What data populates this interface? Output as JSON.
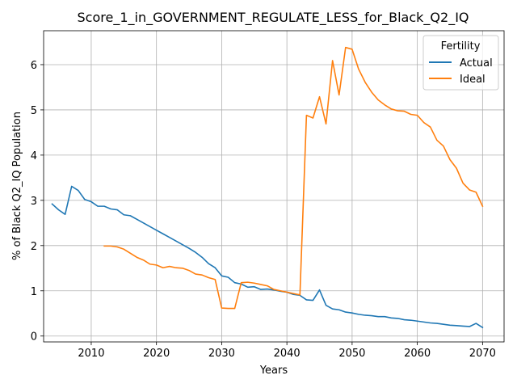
{
  "chart_data": {
    "type": "line",
    "title": "Score_1_in_GOVERNMENT_REGULATE_LESS_for_Black_Q2_IQ",
    "xlabel": "Years",
    "ylabel": "% of Black Q2_IQ Population",
    "xlim": [
      2002.7,
      2073.3
    ],
    "ylim": [
      -0.13,
      6.75
    ],
    "xticks": [
      2010,
      2020,
      2030,
      2040,
      2050,
      2060,
      2070
    ],
    "yticks": [
      0,
      1,
      2,
      3,
      4,
      5,
      6
    ],
    "grid": true,
    "legend": {
      "title": "Fertility",
      "placement": "top-right"
    },
    "series": [
      {
        "name": "Actual",
        "color": "#1f77b4",
        "x": [
          2004,
          2005,
          2006,
          2007,
          2008,
          2009,
          2010,
          2011,
          2012,
          2013,
          2014,
          2015,
          2016,
          2017,
          2018,
          2019,
          2020,
          2021,
          2022,
          2023,
          2024,
          2025,
          2026,
          2027,
          2028,
          2029,
          2030,
          2031,
          2032,
          2033,
          2034,
          2035,
          2036,
          2037,
          2038,
          2039,
          2040,
          2041,
          2042,
          2043,
          2044,
          2045,
          2046,
          2047,
          2048,
          2049,
          2050,
          2051,
          2052,
          2053,
          2054,
          2055,
          2056,
          2057,
          2058,
          2059,
          2060,
          2061,
          2062,
          2063,
          2064,
          2065,
          2066,
          2067,
          2068,
          2069,
          2070
        ],
        "values": [
          2.92,
          2.79,
          2.69,
          3.31,
          3.22,
          3.02,
          2.97,
          2.87,
          2.87,
          2.81,
          2.79,
          2.68,
          2.66,
          2.58,
          2.5,
          2.42,
          2.34,
          2.26,
          2.18,
          2.1,
          2.02,
          1.94,
          1.85,
          1.74,
          1.6,
          1.51,
          1.33,
          1.3,
          1.18,
          1.15,
          1.08,
          1.09,
          1.03,
          1.04,
          1.02,
          0.99,
          0.97,
          0.92,
          0.9,
          0.8,
          0.79,
          1.02,
          0.68,
          0.6,
          0.58,
          0.53,
          0.51,
          0.48,
          0.46,
          0.45,
          0.43,
          0.43,
          0.4,
          0.39,
          0.36,
          0.35,
          0.33,
          0.31,
          0.29,
          0.28,
          0.26,
          0.24,
          0.23,
          0.22,
          0.21,
          0.28,
          0.19
        ]
      },
      {
        "name": "Ideal",
        "color": "#ff7f0e",
        "x": [
          2012,
          2013,
          2014,
          2015,
          2016,
          2017,
          2018,
          2019,
          2020,
          2021,
          2022,
          2023,
          2024,
          2025,
          2026,
          2027,
          2028,
          2029,
          2030,
          2031,
          2032,
          2033,
          2034,
          2035,
          2036,
          2037,
          2038,
          2039,
          2040,
          2041,
          2042,
          2043,
          2044,
          2045,
          2046,
          2047,
          2048,
          2049,
          2050,
          2051,
          2052,
          2053,
          2054,
          2055,
          2056,
          2057,
          2058,
          2059,
          2060,
          2061,
          2062,
          2063,
          2064,
          2065,
          2066,
          2067,
          2068,
          2069,
          2070
        ],
        "values": [
          1.99,
          1.99,
          1.97,
          1.92,
          1.83,
          1.74,
          1.68,
          1.59,
          1.57,
          1.51,
          1.54,
          1.51,
          1.5,
          1.45,
          1.37,
          1.35,
          1.29,
          1.25,
          0.62,
          0.61,
          0.61,
          1.18,
          1.19,
          1.17,
          1.14,
          1.11,
          1.03,
          1.0,
          0.97,
          0.94,
          0.91,
          4.88,
          4.82,
          5.29,
          4.69,
          6.09,
          5.33,
          6.38,
          6.34,
          5.9,
          5.61,
          5.39,
          5.22,
          5.11,
          5.02,
          4.98,
          4.97,
          4.9,
          4.88,
          4.72,
          4.62,
          4.33,
          4.2,
          3.9,
          3.71,
          3.38,
          3.23,
          3.18,
          2.87
        ]
      }
    ]
  }
}
